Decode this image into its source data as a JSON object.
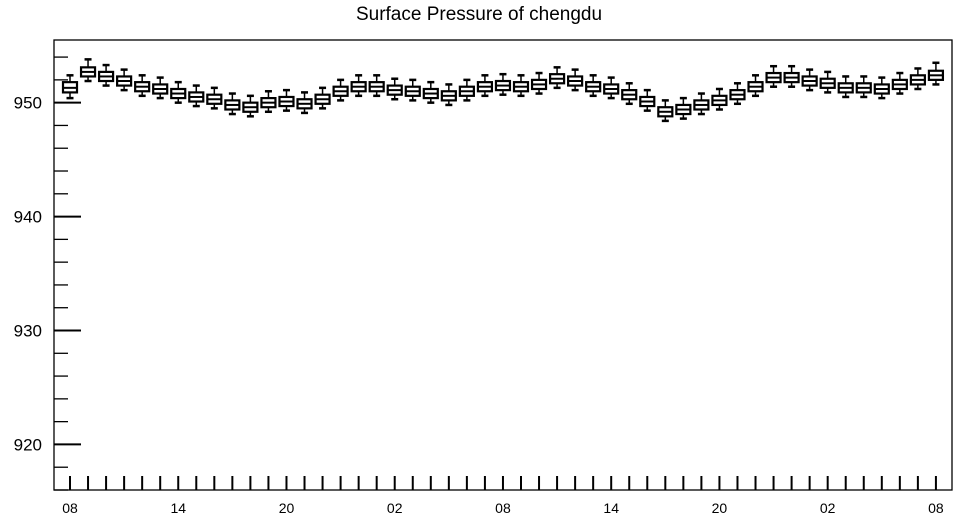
{
  "chart_data": {
    "type": "boxplot",
    "title": "Surface Pressure of chengdu",
    "xlabel": "",
    "ylabel": "",
    "ylim": [
      916,
      955.5
    ],
    "yticks": [
      920,
      930,
      940,
      950
    ],
    "xtick_labels": [
      "08",
      "14",
      "20",
      "02",
      "08",
      "14",
      "20",
      "02",
      "08"
    ],
    "grid": false,
    "series": [
      {
        "categories": [
          "08",
          "09",
          "10",
          "11",
          "12",
          "13",
          "14",
          "15",
          "16",
          "17",
          "18",
          "19",
          "20",
          "21",
          "22",
          "23",
          "00",
          "01",
          "02",
          "03",
          "04",
          "05",
          "06",
          "07",
          "08",
          "09",
          "10",
          "11",
          "12",
          "13",
          "14",
          "15",
          "16",
          "17",
          "18",
          "19",
          "20",
          "21",
          "22",
          "23",
          "00",
          "01",
          "02",
          "03",
          "04",
          "05",
          "06",
          "07",
          "08"
        ],
        "median": [
          951.3,
          952.7,
          952.3,
          951.9,
          951.4,
          951.2,
          950.8,
          950.5,
          950.3,
          949.8,
          949.6,
          950.0,
          950.1,
          949.9,
          950.3,
          951.0,
          951.4,
          951.4,
          951.1,
          951.0,
          950.8,
          950.6,
          951.0,
          951.4,
          951.5,
          951.4,
          951.6,
          952.1,
          951.9,
          951.4,
          951.2,
          950.7,
          950.1,
          949.2,
          949.4,
          949.8,
          950.2,
          950.7,
          951.4,
          952.2,
          952.2,
          951.9,
          951.7,
          951.3,
          951.3,
          951.2,
          951.6,
          952.0,
          952.4
        ],
        "q1": [
          950.9,
          952.3,
          951.9,
          951.5,
          951.0,
          950.8,
          950.4,
          950.1,
          949.9,
          949.4,
          949.2,
          949.6,
          949.7,
          949.5,
          949.9,
          950.6,
          951.0,
          951.0,
          950.7,
          950.6,
          950.4,
          950.2,
          950.6,
          951.0,
          951.1,
          951.0,
          951.2,
          951.7,
          951.5,
          951.0,
          950.8,
          950.3,
          949.7,
          948.8,
          949.0,
          949.4,
          949.8,
          950.3,
          951.0,
          951.8,
          951.8,
          951.5,
          951.3,
          950.9,
          950.9,
          950.8,
          951.2,
          951.6,
          952.0
        ],
        "q3": [
          951.8,
          953.1,
          952.7,
          952.3,
          951.8,
          951.6,
          951.2,
          950.9,
          950.7,
          950.2,
          950.0,
          950.4,
          950.5,
          950.3,
          950.7,
          951.4,
          951.8,
          951.8,
          951.5,
          951.4,
          951.2,
          951.0,
          951.4,
          951.8,
          951.9,
          951.8,
          952.0,
          952.5,
          952.3,
          951.8,
          951.6,
          951.1,
          950.5,
          949.6,
          949.8,
          950.2,
          950.6,
          951.1,
          951.8,
          952.6,
          952.6,
          952.3,
          952.1,
          951.7,
          951.7,
          951.6,
          952.0,
          952.4,
          952.8
        ],
        "whisker_low": [
          950.4,
          951.9,
          951.5,
          951.1,
          950.6,
          950.4,
          950.0,
          949.7,
          949.5,
          949.0,
          948.8,
          949.2,
          949.3,
          949.1,
          949.5,
          950.2,
          950.6,
          950.6,
          950.3,
          950.2,
          950.0,
          949.8,
          950.2,
          950.6,
          950.7,
          950.6,
          950.8,
          951.3,
          951.1,
          950.6,
          950.4,
          949.9,
          949.3,
          948.4,
          948.6,
          949.0,
          949.4,
          949.9,
          950.6,
          951.4,
          951.4,
          951.1,
          950.9,
          950.5,
          950.5,
          950.4,
          950.8,
          951.2,
          951.6
        ],
        "whisker_high": [
          952.4,
          953.8,
          953.3,
          952.9,
          952.4,
          952.2,
          951.8,
          951.5,
          951.3,
          950.8,
          950.6,
          951.0,
          951.1,
          950.9,
          951.3,
          952.0,
          952.4,
          952.4,
          952.1,
          952.0,
          951.8,
          951.6,
          952.0,
          952.4,
          952.5,
          952.4,
          952.6,
          953.1,
          952.9,
          952.4,
          952.2,
          951.7,
          951.1,
          950.2,
          950.4,
          950.8,
          951.2,
          951.7,
          952.4,
          953.2,
          953.2,
          952.9,
          952.7,
          952.3,
          952.3,
          952.2,
          952.6,
          953.0,
          953.5
        ]
      }
    ]
  }
}
